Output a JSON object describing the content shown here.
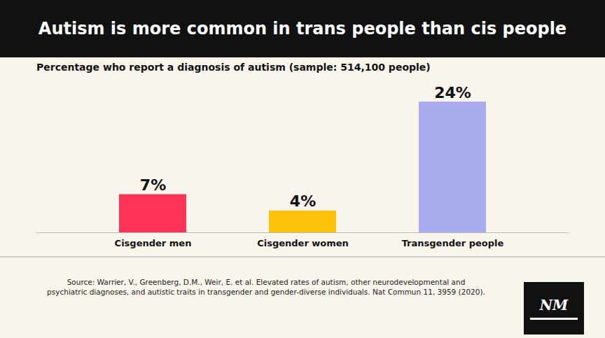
{
  "chart_data": {
    "type": "bar",
    "title": "Autism is more common in trans people than cis people",
    "subtitle": "Percentage who report a diagnosis of autism (sample: 514,100 people)",
    "categories": [
      "Cisgender men",
      "Cisgender women",
      "Transgender people"
    ],
    "values": [
      7,
      4,
      24
    ],
    "value_labels": [
      "7%",
      "4%",
      "24%"
    ],
    "colors": [
      "#FF3355",
      "#FFC107",
      "#AAAAEE"
    ],
    "ylim": [
      0,
      28
    ],
    "data_labels": true,
    "tick_labels": "x",
    "annotations": [
      "Source: Warrier, V., Greenberg, D.M., Weir, E. et al. Elevated rates of autism, other neurodevelopmental and\npsychiatric diagnoses, and autistic traits in transgender and gender-diverse individuals. Nat Commun 11, 3959 (2020).",
      "NM"
    ]
  }
}
